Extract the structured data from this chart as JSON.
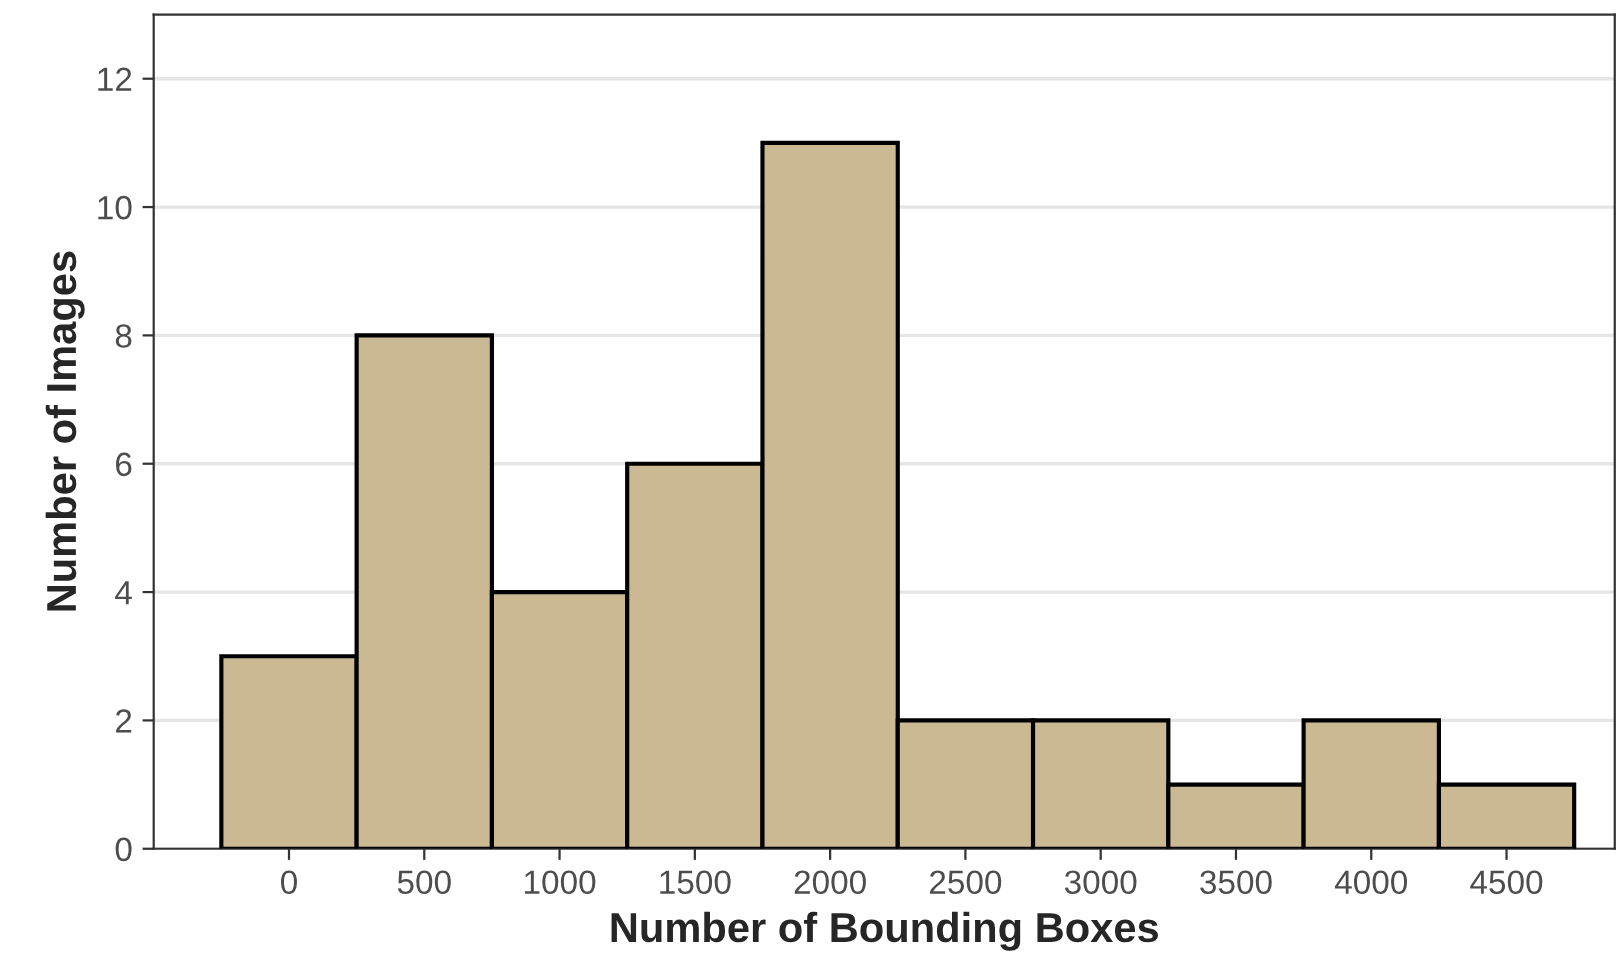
{
  "chart_data": {
    "type": "histogram",
    "xlabel": "Number of Bounding Boxes",
    "ylabel": "Number of Images",
    "bins": [
      -250,
      250,
      750,
      1250,
      1750,
      2250,
      2750,
      3250,
      3750,
      4250,
      4750
    ],
    "values": [
      3,
      8,
      4,
      6,
      11,
      2,
      2,
      1,
      2,
      1
    ],
    "color": "#cbb994",
    "xlim": [
      -500,
      4900
    ],
    "xticks": [
      0,
      500,
      1000,
      1500,
      2000,
      2500,
      3000,
      3500,
      4000,
      4500
    ],
    "ylim": [
      0,
      13
    ],
    "yticks": [
      0,
      2,
      4,
      6,
      8,
      10,
      12
    ],
    "grid": "y",
    "legend": false
  }
}
